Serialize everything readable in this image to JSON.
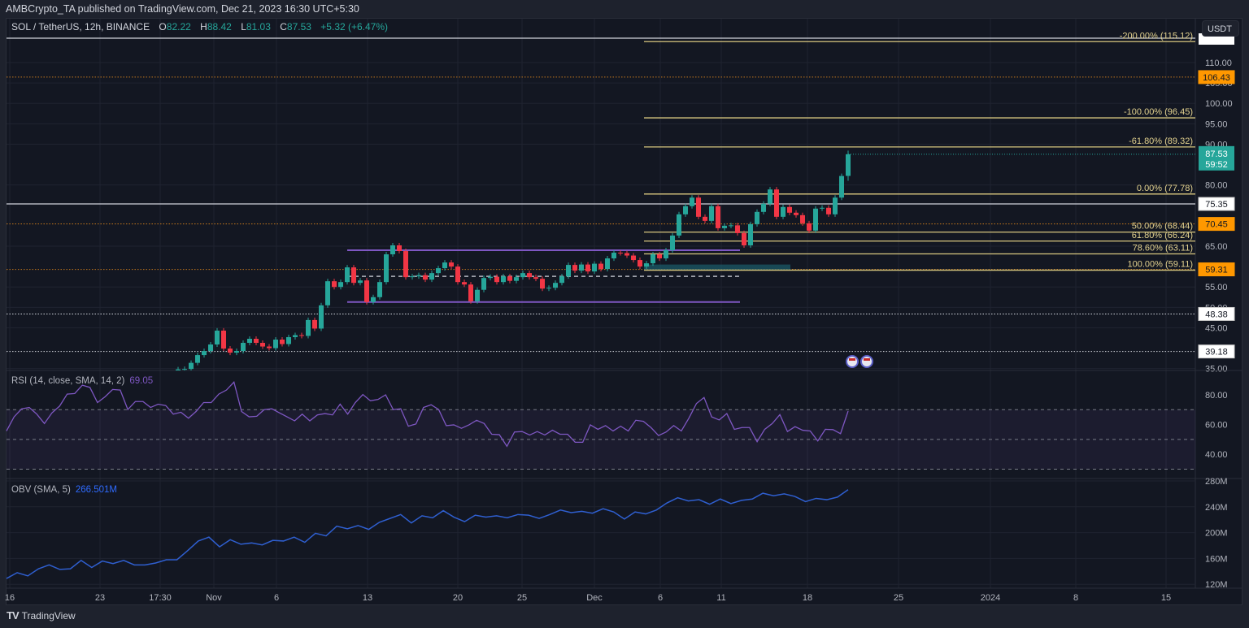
{
  "header": {
    "publisher": "AMBCrypto_TA published on TradingView.com, Dec 21, 2023 16:30 UTC+5:30"
  },
  "legend": {
    "symbol": "SOL / TetherUS, 12h, BINANCE",
    "o_label": "O",
    "o": "82.22",
    "h_label": "H",
    "h": "88.42",
    "l_label": "L",
    "l": "81.03",
    "c_label": "C",
    "c": "87.53",
    "change": "+5.32 (+6.47%)"
  },
  "currency_button": "USDT",
  "colors": {
    "up": "#26a69a",
    "down": "#f23645",
    "fib": "#d8c77f",
    "orange": "#ff9800",
    "rsi": "#7e57c2",
    "obv": "#2f5fd0",
    "range": "#7e57c2",
    "zone": "#1b5e6b"
  },
  "price_axis": {
    "ticks": [
      "110.00",
      "105.00",
      "100.00",
      "95.00",
      "90.00",
      "80.00",
      "65.00",
      "55.00",
      "50.00",
      "45.00",
      "35.00"
    ]
  },
  "price_labels": [
    {
      "text": "106.43",
      "value": 106.43,
      "style": "orange"
    },
    {
      "text": "75.35",
      "value": 75.35,
      "style": "white"
    },
    {
      "text": "70.45",
      "value": 70.45,
      "style": "orange"
    },
    {
      "text": "59.31",
      "value": 59.31,
      "style": "orange"
    },
    {
      "text": "48.38",
      "value": 48.38,
      "style": "white"
    },
    {
      "text": "39.18",
      "value": 39.18,
      "style": "white"
    }
  ],
  "current_price": {
    "price": "87.53",
    "countdown": "59:52",
    "value": 87.53
  },
  "fib": {
    "levels": [
      {
        "label": "-200.00% (115.12)",
        "price": 115.12
      },
      {
        "label": "-100.00% (96.45)",
        "price": 96.45
      },
      {
        "label": "-61.80% (89.32)",
        "price": 89.32
      },
      {
        "label": "0.00% (77.78)",
        "price": 77.78
      },
      {
        "label": "50.00% (68.44)",
        "price": 68.44
      },
      {
        "label": "61.80% (66.24)",
        "price": 66.24
      },
      {
        "label": "78.60% (63.11)",
        "price": 63.11
      },
      {
        "label": "100.00% (59.11)",
        "price": 59.11
      }
    ]
  },
  "range_box": {
    "top": 64.0,
    "mid": 57.6,
    "bottom": 51.3
  },
  "demand_zone": {
    "top": 60.5,
    "bottom": 59.1
  },
  "rsi": {
    "title": "RSI (14, close, SMA, 14, 2)",
    "value": "69.05",
    "ticks": [
      "80.00",
      "60.00",
      "40.00"
    ],
    "bands": [
      70,
      50,
      30
    ],
    "values": [
      55.7,
      65.2,
      70.6,
      71.5,
      67,
      60.7,
      67.9,
      72.4,
      80.5,
      80.9,
      86.5,
      85,
      74.8,
      78.7,
      83.6,
      83.2,
      70.1,
      75.5,
      75.5,
      71.5,
      73.7,
      72.8,
      67,
      68.3,
      64.3,
      68.8,
      74.8,
      74.8,
      80.5,
      83.2,
      88.6,
      68.8,
      65.2,
      65.6,
      70.1,
      70.6,
      67.9,
      65.2,
      62.5,
      67,
      62.5,
      66.5,
      67.4,
      66.5,
      73.7,
      67,
      74.8,
      80.2,
      76,
      76.9,
      80,
      70.1,
      70.6,
      58.9,
      60.4,
      71.5,
      73.3,
      70.1,
      59.3,
      59.8,
      57.5,
      59.8,
      62.9,
      60.7,
      53.5,
      53.2,
      45.4,
      55,
      55.3,
      53,
      55.3,
      53,
      56.2,
      53.5,
      53.5,
      48.1,
      48.1,
      59.8,
      56.8,
      59.3,
      55.7,
      58.9,
      55.7,
      62.9,
      62.2,
      58,
      52.6,
      55,
      59.3,
      55.7,
      64.3,
      74.2,
      78.2,
      65.2,
      63.1,
      67.4,
      56.8,
      58,
      58,
      48.5,
      56.8,
      60.7,
      66.7,
      55.3,
      58.6,
      56.2,
      55.7,
      49,
      56.8,
      56.6,
      53.9,
      69.05
    ]
  },
  "obv": {
    "title": "OBV (SMA, 5)",
    "value": "266.501M",
    "ticks": [
      "280M",
      "240M",
      "200M",
      "160M",
      "120M"
    ],
    "values": [
      129,
      138,
      133,
      144,
      150,
      143,
      144,
      157,
      146,
      156,
      152,
      157,
      150,
      150,
      153,
      158,
      158,
      172,
      187,
      193,
      178,
      189,
      182,
      184,
      181,
      188,
      187,
      193,
      185,
      199,
      195,
      210,
      206,
      211,
      205,
      216,
      222,
      228,
      215,
      226,
      223,
      234,
      224,
      217,
      227,
      224,
      226,
      223,
      228,
      227,
      222,
      228,
      235,
      231,
      233,
      230,
      237,
      232,
      221,
      232,
      229,
      235,
      246,
      254,
      249,
      251,
      244,
      252,
      245,
      250,
      252,
      261,
      257,
      260,
      256,
      248,
      253,
      251,
      255,
      266.5
    ]
  },
  "time_axis": [
    "16",
    "23",
    "17:30",
    "Nov",
    "6",
    "13",
    "20",
    "25",
    "Dec",
    "6",
    "11",
    "18",
    "25",
    "2024",
    "8",
    "15"
  ],
  "footer": {
    "brand": "TradingView"
  },
  "chart_data": {
    "type": "candlestick",
    "title": "SOL / TetherUS, 12h, BINANCE",
    "ylabel": "USDT",
    "ylim": [
      35,
      116
    ],
    "x_tick_labels": [
      "16",
      "23",
      "17:30",
      "Nov",
      "6",
      "13",
      "20",
      "25",
      "Dec",
      "6",
      "11",
      "18",
      "25",
      "2024",
      "8",
      "15"
    ],
    "closes": [
      34.8,
      34.9,
      36.4,
      38.3,
      39.3,
      40.9,
      44.3,
      39.9,
      38.9,
      39.3,
      41.3,
      42.3,
      41.3,
      40.4,
      40.0,
      42.1,
      41.0,
      42.7,
      43.2,
      43.0,
      46.9,
      44.8,
      50.5,
      56.4,
      55.0,
      56.2,
      59.8,
      56.0,
      56.6,
      51.3,
      52.5,
      56.2,
      63.0,
      65.2,
      63.8,
      57.4,
      57.6,
      57.9,
      56.8,
      58.4,
      59.6,
      61.0,
      60.0,
      56.2,
      55.6,
      51.5,
      54.3,
      57.2,
      57.5,
      56.2,
      57.6,
      56.5,
      57.4,
      58.4,
      57.4,
      57.0,
      54.6,
      54.8,
      56.0,
      57.6,
      60.4,
      59.0,
      60.5,
      58.8,
      60.7,
      59.4,
      62.0,
      63.4,
      63.3,
      62.7,
      61.6,
      60.0,
      60.8,
      63.0,
      62.0,
      64.0,
      67.6,
      72.8,
      74.8,
      76.9,
      72.2,
      71.2,
      74.8,
      69.4,
      70.0,
      70.1,
      68.2,
      65.2,
      70.4,
      73.4,
      75.4,
      78.9,
      72.2,
      74.6,
      73.2,
      72.6,
      70.6,
      68.8,
      74.2,
      74.4,
      72.8,
      76.9,
      82.2,
      87.53
    ],
    "last_bar": {
      "open": 82.22,
      "high": 88.42,
      "low": 81.03,
      "close": 87.53
    }
  }
}
